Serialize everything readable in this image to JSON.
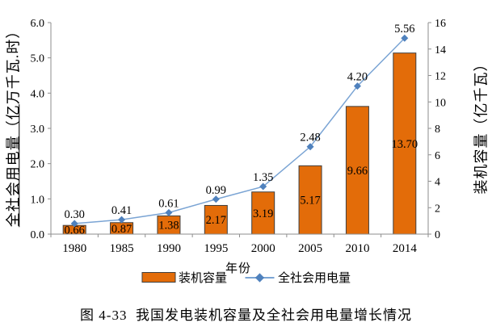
{
  "figure": {
    "caption": "图 4-33  我国发电装机容量及全社会用电量增长情况"
  },
  "chart_data": {
    "type": "combo-bar-line",
    "categories": [
      "1980",
      "1985",
      "1990",
      "1995",
      "2000",
      "2005",
      "2010",
      "2014"
    ],
    "series": [
      {
        "name": "装机容量",
        "type": "bar",
        "axis": "right",
        "values": [
          0.66,
          0.87,
          1.38,
          2.17,
          3.19,
          5.17,
          9.66,
          13.7
        ],
        "labels": [
          "0.66",
          "0.87",
          "1.38",
          "2.17",
          "3.19",
          "5.17",
          "9.66",
          "13.70"
        ],
        "fill": "#E36C09",
        "stroke": "#3F3F3F"
      },
      {
        "name": "全社会用电量",
        "type": "line",
        "axis": "left",
        "values": [
          0.3,
          0.41,
          0.61,
          0.99,
          1.35,
          2.48,
          4.2,
          5.56
        ],
        "labels": [
          "0.30",
          "0.41",
          "0.61",
          "0.99",
          "1.35",
          "2.48",
          "4.20",
          "5.56"
        ],
        "line_color": "#7AA4D4",
        "marker_color": "#4F81BD"
      }
    ],
    "x_axis": {
      "label": "年份"
    },
    "left_axis": {
      "label": "全社会用电量（亿万千瓦.时）",
      "label_underlined_part": "全社会用电量（亿",
      "label_rest": "万千瓦.时）",
      "min": 0,
      "max": 6,
      "step": 1,
      "tick_labels": [
        "0.0",
        "1.0",
        "2.0",
        "3.0",
        "4.0",
        "5.0",
        "6.0"
      ]
    },
    "right_axis": {
      "label": "装机容量（亿千瓦）",
      "min": 0,
      "max": 16,
      "step": 2,
      "tick_labels": [
        "0",
        "2",
        "4",
        "6",
        "8",
        "10",
        "12",
        "14",
        "16"
      ]
    },
    "grid": false,
    "legend_position": "bottom",
    "colors": {
      "axis": "#8E8E8E",
      "text": "#000000",
      "background": "#FFFFFF"
    }
  }
}
